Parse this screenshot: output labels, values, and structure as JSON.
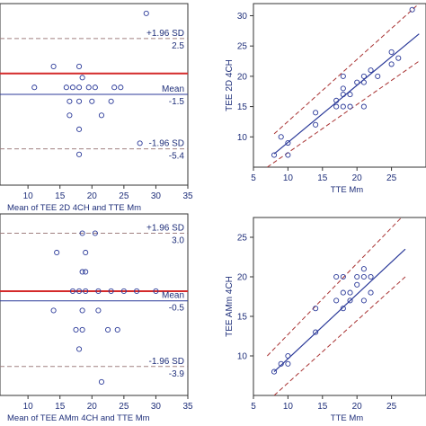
{
  "chart_data": [
    {
      "id": "ba1",
      "type": "scatter",
      "subtype": "bland-altman",
      "title": "",
      "xlabel": "Mean of TEE 2D 4CH and TTE Mm",
      "ylabel": "",
      "xlim": [
        0,
        35
      ],
      "ylim": [
        -8,
        5
      ],
      "xticks": [
        5,
        10,
        15,
        20,
        25,
        30,
        35
      ],
      "grid": false,
      "points": [
        {
          "x": 28.5,
          "y": 4.3
        },
        {
          "x": 14.0,
          "y": 0.5
        },
        {
          "x": 18.0,
          "y": 0.5
        },
        {
          "x": 18.5,
          "y": -0.3
        },
        {
          "x": 11.0,
          "y": -1.0
        },
        {
          "x": 16.0,
          "y": -1.0
        },
        {
          "x": 17.0,
          "y": -1.0
        },
        {
          "x": 18.0,
          "y": -1.0
        },
        {
          "x": 19.5,
          "y": -1.0
        },
        {
          "x": 20.5,
          "y": -1.0
        },
        {
          "x": 23.5,
          "y": -1.0
        },
        {
          "x": 24.5,
          "y": -1.0
        },
        {
          "x": 16.5,
          "y": -2.0
        },
        {
          "x": 18.0,
          "y": -2.0
        },
        {
          "x": 20.0,
          "y": -2.0
        },
        {
          "x": 23.0,
          "y": -2.0
        },
        {
          "x": 16.5,
          "y": -3.0
        },
        {
          "x": 21.5,
          "y": -3.0
        },
        {
          "x": 18.0,
          "y": -4.0
        },
        {
          "x": 27.5,
          "y": -5.0
        },
        {
          "x": 18.0,
          "y": -5.8
        }
      ],
      "zero_line": {
        "y": 0,
        "color": "#d42a2a"
      },
      "mean_line": {
        "y": -1.5,
        "label": "Mean",
        "value": "-1.5",
        "color": "#2b3a99"
      },
      "upper_loa": {
        "y": 2.5,
        "label": "+1.96 SD",
        "value": "2.5"
      },
      "lower_loa": {
        "y": -5.4,
        "label": "-1.96 SD",
        "value": "-5.4"
      }
    },
    {
      "id": "sc1",
      "type": "scatter",
      "subtype": "regression",
      "title": "",
      "xlabel": "TTE Mm",
      "ylabel": "TEE 2D 4CH",
      "xlim": [
        5,
        30
      ],
      "ylim": [
        5,
        32
      ],
      "xticks": [
        5,
        10,
        15,
        20,
        25
      ],
      "yticks": [
        10,
        15,
        20,
        25,
        30
      ],
      "grid": false,
      "points": [
        {
          "x": 8,
          "y": 7
        },
        {
          "x": 9,
          "y": 10
        },
        {
          "x": 10,
          "y": 9
        },
        {
          "x": 10,
          "y": 7
        },
        {
          "x": 14,
          "y": 14
        },
        {
          "x": 14,
          "y": 12
        },
        {
          "x": 17,
          "y": 16
        },
        {
          "x": 17,
          "y": 15
        },
        {
          "x": 18,
          "y": 20
        },
        {
          "x": 18,
          "y": 18
        },
        {
          "x": 18,
          "y": 17
        },
        {
          "x": 18,
          "y": 15
        },
        {
          "x": 19,
          "y": 17
        },
        {
          "x": 19,
          "y": 15
        },
        {
          "x": 20,
          "y": 19
        },
        {
          "x": 21,
          "y": 20
        },
        {
          "x": 21,
          "y": 19
        },
        {
          "x": 21,
          "y": 15
        },
        {
          "x": 22,
          "y": 21
        },
        {
          "x": 23,
          "y": 20
        },
        {
          "x": 25,
          "y": 24
        },
        {
          "x": 25,
          "y": 22
        },
        {
          "x": 26,
          "y": 23
        },
        {
          "x": 28,
          "y": 31
        }
      ],
      "fit_line": {
        "x": [
          8,
          29
        ],
        "y": [
          7.2,
          27.0
        ],
        "color": "#2b3a99"
      },
      "ci_upper": {
        "x": [
          8,
          29
        ],
        "y": [
          10.5,
          32.0
        ],
        "color": "#a83232"
      },
      "ci_lower": {
        "x": [
          7,
          29
        ],
        "y": [
          5.0,
          22.5
        ],
        "color": "#a83232"
      }
    },
    {
      "id": "ba2",
      "type": "scatter",
      "subtype": "bland-altman",
      "title": "",
      "xlabel": "Mean of TEE AMm 4CH and TTE Mm",
      "ylabel": "",
      "xlim": [
        0,
        35
      ],
      "ylim": [
        -5.4,
        4.0
      ],
      "xticks": [
        5,
        10,
        15,
        20,
        25,
        30,
        35
      ],
      "grid": false,
      "points": [
        {
          "x": 18.5,
          "y": 3.0
        },
        {
          "x": 20.5,
          "y": 3.0
        },
        {
          "x": 14.5,
          "y": 2.0
        },
        {
          "x": 19.0,
          "y": 2.0
        },
        {
          "x": 18.5,
          "y": 1.0
        },
        {
          "x": 19.0,
          "y": 1.0
        },
        {
          "x": 17.0,
          "y": 0.0
        },
        {
          "x": 18.0,
          "y": 0.0
        },
        {
          "x": 19.0,
          "y": 0.0
        },
        {
          "x": 21.0,
          "y": 0.0
        },
        {
          "x": 23.0,
          "y": 0.0
        },
        {
          "x": 25.0,
          "y": 0.0
        },
        {
          "x": 27.0,
          "y": 0.0
        },
        {
          "x": 30.0,
          "y": 0.0
        },
        {
          "x": 14.0,
          "y": -1.0
        },
        {
          "x": 18.5,
          "y": -1.0
        },
        {
          "x": 21.0,
          "y": -1.0
        },
        {
          "x": 17.5,
          "y": -2.0
        },
        {
          "x": 18.5,
          "y": -2.0
        },
        {
          "x": 22.5,
          "y": -2.0
        },
        {
          "x": 24.0,
          "y": -2.0
        },
        {
          "x": 18.0,
          "y": -3.0
        },
        {
          "x": 21.5,
          "y": -4.7
        }
      ],
      "zero_line": {
        "y": 0,
        "color": "#d42a2a"
      },
      "mean_line": {
        "y": -0.5,
        "label": "Mean",
        "value": "-0.5",
        "color": "#2b3a99"
      },
      "upper_loa": {
        "y": 3.0,
        "label": "+1.96 SD",
        "value": "3.0"
      },
      "lower_loa": {
        "y": -3.9,
        "label": "-1.96 SD",
        "value": "-3.9"
      }
    },
    {
      "id": "sc2",
      "type": "scatter",
      "subtype": "regression",
      "title": "",
      "xlabel": "TTE Mm",
      "ylabel": "TEE AMm 4CH",
      "xlim": [
        5,
        30
      ],
      "ylim": [
        5,
        27.5
      ],
      "xticks": [
        5,
        10,
        15,
        20,
        25
      ],
      "yticks": [
        10,
        15,
        20,
        25
      ],
      "grid": false,
      "points": [
        {
          "x": 8,
          "y": 8
        },
        {
          "x": 9,
          "y": 9
        },
        {
          "x": 10,
          "y": 10
        },
        {
          "x": 10,
          "y": 9
        },
        {
          "x": 14,
          "y": 16
        },
        {
          "x": 14,
          "y": 13
        },
        {
          "x": 17,
          "y": 20
        },
        {
          "x": 17,
          "y": 17
        },
        {
          "x": 18,
          "y": 20
        },
        {
          "x": 18,
          "y": 18
        },
        {
          "x": 18,
          "y": 16
        },
        {
          "x": 19,
          "y": 18
        },
        {
          "x": 19,
          "y": 17
        },
        {
          "x": 20,
          "y": 20
        },
        {
          "x": 20,
          "y": 19
        },
        {
          "x": 21,
          "y": 21
        },
        {
          "x": 21,
          "y": 20
        },
        {
          "x": 21,
          "y": 17
        },
        {
          "x": 22,
          "y": 20
        },
        {
          "x": 22,
          "y": 18
        }
      ],
      "fit_line": {
        "x": [
          8,
          27
        ],
        "y": [
          8.0,
          23.5
        ],
        "color": "#2b3a99"
      },
      "ci_upper": {
        "x": [
          7,
          27
        ],
        "y": [
          10.0,
          28.0
        ],
        "color": "#a83232"
      },
      "ci_lower": {
        "x": [
          8,
          27
        ],
        "y": [
          5.0,
          20.0
        ],
        "color": "#a83232"
      }
    }
  ]
}
